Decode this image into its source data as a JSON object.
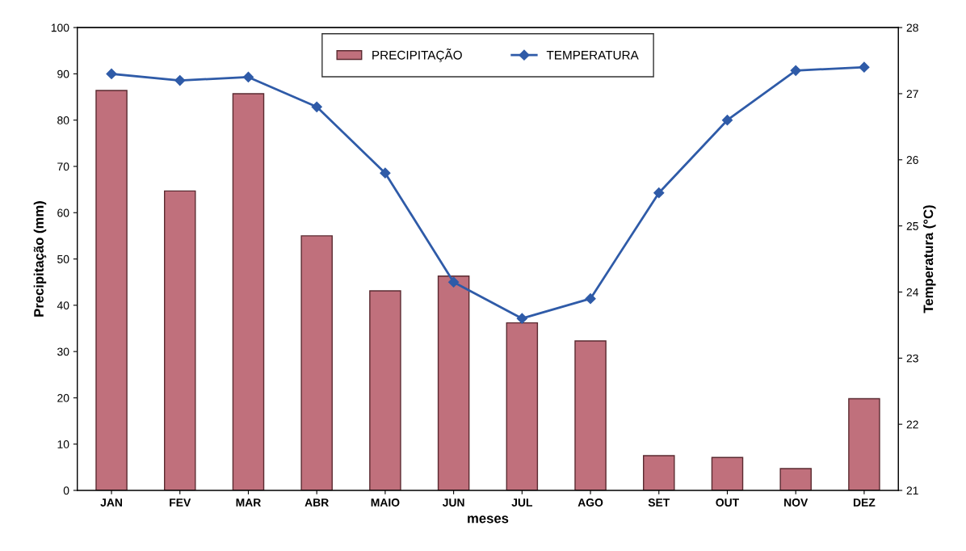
{
  "chart_data": {
    "type": "bar",
    "xlabel": "meses",
    "ylabel": "Precipitação (mm)",
    "y2label": "Temperatura (°C)",
    "categories": [
      "JAN",
      "FEV",
      "MAR",
      "ABR",
      "MAIO",
      "JUN",
      "JUL",
      "AGO",
      "SET",
      "OUT",
      "NOV",
      "DEZ"
    ],
    "series": [
      {
        "name": "PRECIPITAÇÃO",
        "color": "#c0707c",
        "values": [
          86.4,
          64.7,
          85.7,
          55.0,
          43.1,
          46.3,
          36.2,
          32.3,
          7.5,
          7.1,
          4.7,
          19.8
        ]
      },
      {
        "name": "TEMPERATURA",
        "type": "line",
        "axis": "y2",
        "color": "#2f5ba8",
        "marker": "diamond",
        "values": [
          27.3,
          27.2,
          27.25,
          26.8,
          25.8,
          24.15,
          23.6,
          23.9,
          25.5,
          26.6,
          27.35,
          27.4
        ]
      }
    ],
    "ylim": [
      0,
      100
    ],
    "yticks": [
      0,
      10,
      20,
      30,
      40,
      50,
      60,
      70,
      80,
      90,
      100
    ],
    "y2lim": [
      21,
      28
    ],
    "y2ticks": [
      21,
      22,
      23,
      24,
      25,
      26,
      27,
      28
    ],
    "legend": "top",
    "grid": false
  }
}
